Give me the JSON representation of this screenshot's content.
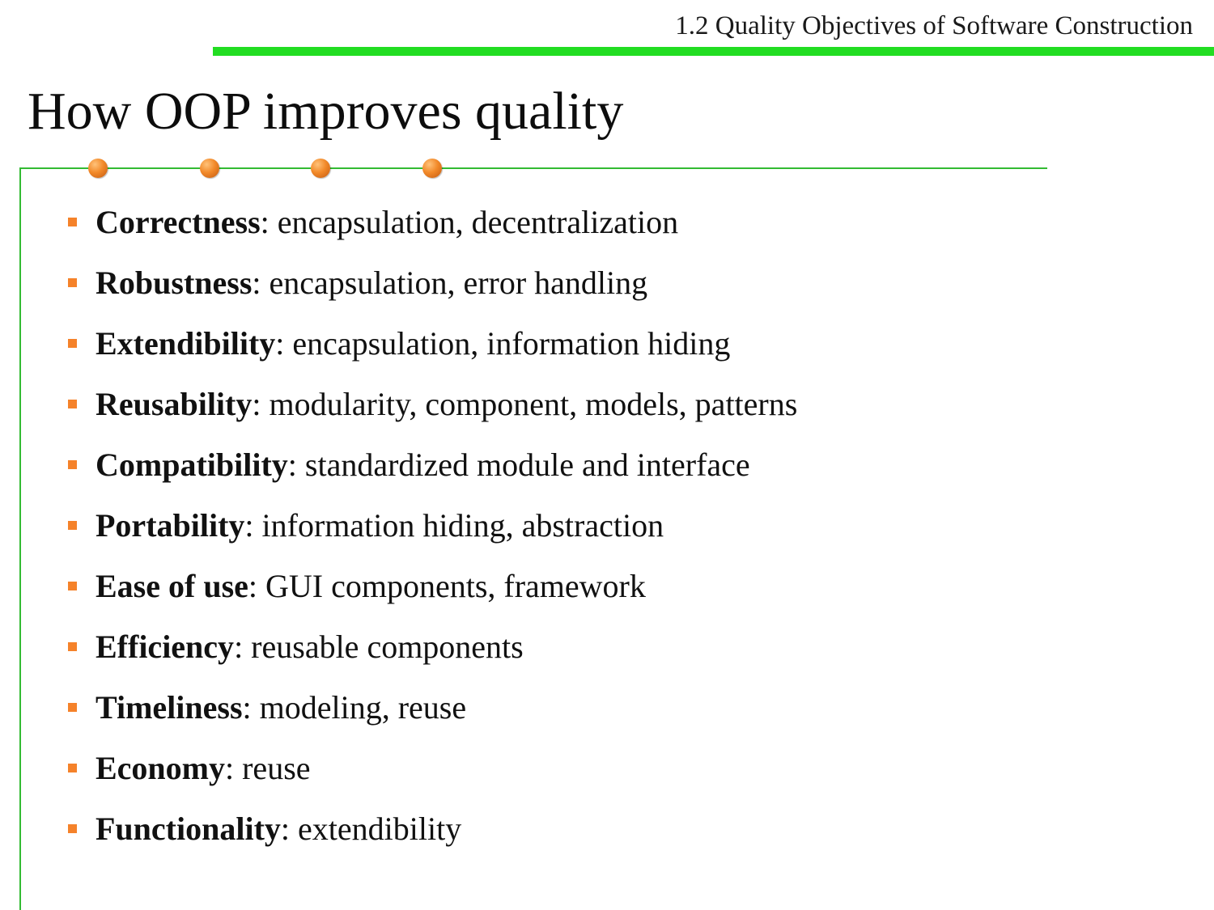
{
  "header": {
    "section_title": "1.2 Quality Objectives of Software Construction",
    "accent_color": "#22dd22"
  },
  "slide": {
    "title": "How OOP improves quality",
    "bullet_color": "#f5822a",
    "items": [
      {
        "term": "Correctness",
        "desc": ": encapsulation, decentralization"
      },
      {
        "term": "Robustness",
        "desc": ": encapsulation, error handling"
      },
      {
        "term": "Extendibility",
        "desc": ": encapsulation, information hiding"
      },
      {
        "term": "Reusability",
        "desc": ": modularity, component, models, patterns"
      },
      {
        "term": "Compatibility",
        "desc": ": standardized module and interface"
      },
      {
        "term": "Portability",
        "desc": ": information hiding, abstraction"
      },
      {
        "term": "Ease of use",
        "desc": ": GUI components, framework"
      },
      {
        "term": "Efficiency",
        "desc": ": reusable components"
      },
      {
        "term": "Timeliness",
        "desc": ": modeling, reuse"
      },
      {
        "term": "Economy",
        "desc": ": reuse"
      },
      {
        "term": "Functionality",
        "desc": ": extendibility"
      }
    ]
  }
}
